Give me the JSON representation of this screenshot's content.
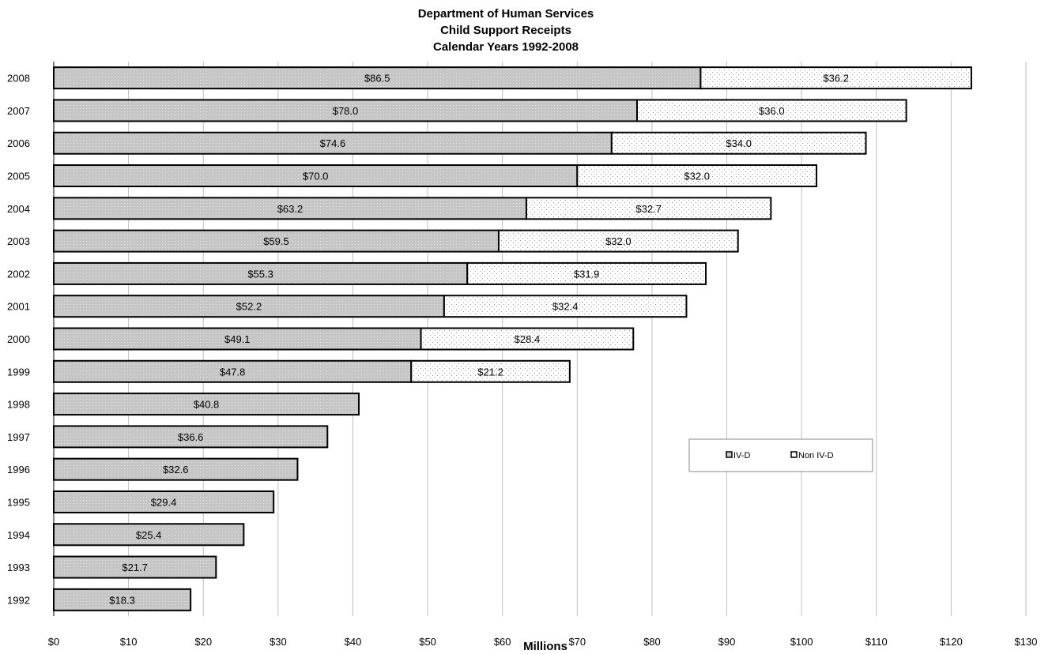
{
  "chart_data": {
    "type": "bar",
    "orientation": "horizontal",
    "stacked": true,
    "title": [
      "Department of Human Services",
      "Child Support Receipts",
      "Calendar Years 1992-2008"
    ],
    "xlabel": "Millions",
    "ylabel": "",
    "xlim": [
      0,
      130
    ],
    "x_ticks": [
      0,
      10,
      20,
      30,
      40,
      50,
      60,
      70,
      80,
      90,
      100,
      110,
      120,
      130
    ],
    "x_tick_labels": [
      "$0",
      "$10",
      "$20",
      "$30",
      "$40",
      "$50",
      "$60",
      "$70",
      "$80",
      "$90",
      "$100",
      "$110",
      "$120",
      "$130"
    ],
    "grid": "vertical",
    "legend_position": "center-right",
    "categories": [
      "2008",
      "2007",
      "2006",
      "2005",
      "2004",
      "2003",
      "2002",
      "2001",
      "2000",
      "1999",
      "1998",
      "1997",
      "1996",
      "1995",
      "1994",
      "1993",
      "1992"
    ],
    "series": [
      {
        "name": "IV-D",
        "color": "#c8c8c8",
        "values": [
          86.5,
          78.0,
          74.6,
          70.0,
          63.2,
          59.5,
          55.3,
          52.2,
          49.1,
          47.8,
          40.8,
          36.6,
          32.6,
          29.4,
          25.4,
          21.7,
          18.3
        ],
        "labels": [
          "$86.5",
          "$78.0",
          "$74.6",
          "$70.0",
          "$63.2",
          "$59.5",
          "$55.3",
          "$52.2",
          "$49.1",
          "$47.8",
          "$40.8",
          "$36.6",
          "$32.6",
          "$29.4",
          "$25.4",
          "$21.7",
          "$18.3"
        ]
      },
      {
        "name": "Non IV-D",
        "color": "#f4f4f4",
        "values": [
          36.2,
          36.0,
          34.0,
          32.0,
          32.7,
          32.0,
          31.9,
          32.4,
          28.4,
          21.2,
          null,
          null,
          null,
          null,
          null,
          null,
          null
        ],
        "labels": [
          "$36.2",
          "$36.0",
          "$34.0",
          "$32.0",
          "$32.7",
          "$32.0",
          "$31.9",
          "$32.4",
          "$28.4",
          "$21.2",
          null,
          null,
          null,
          null,
          null,
          null,
          null
        ]
      }
    ]
  }
}
